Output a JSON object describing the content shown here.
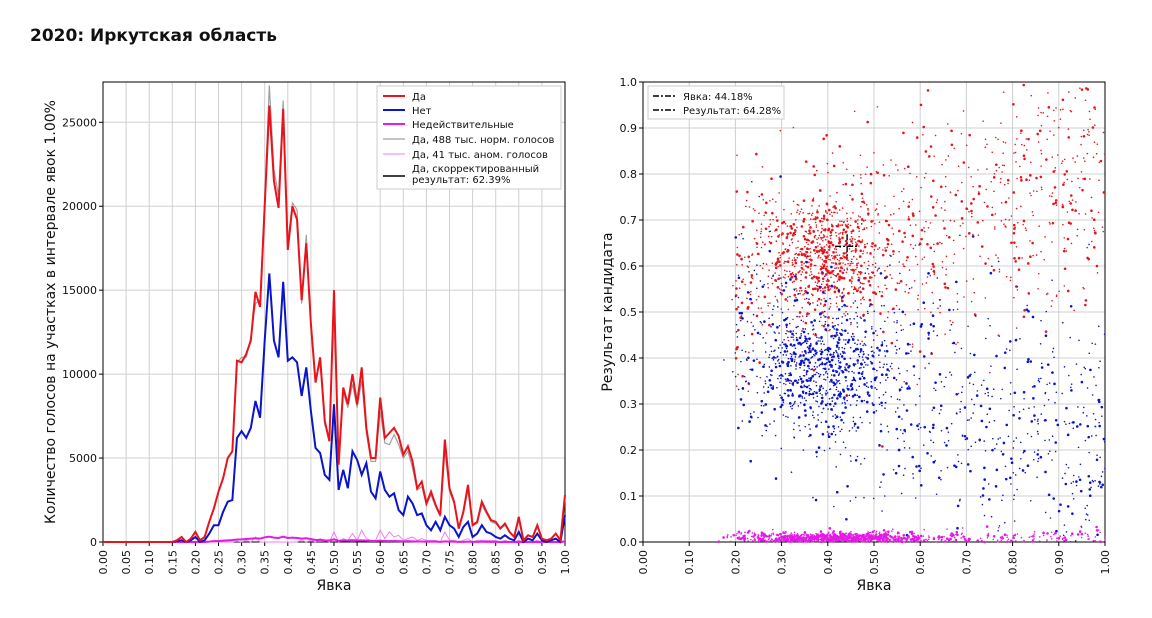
{
  "title": "2020: Иркутская область",
  "chart_data": [
    {
      "type": "line",
      "xlabel": "Явка",
      "ylabel": "Количество голосов на участках в интервале явок 1.00%",
      "xlim": [
        0,
        1
      ],
      "ylim": [
        0,
        27400
      ],
      "xticks": [
        "0.00",
        "0.05",
        "0.10",
        "0.15",
        "0.20",
        "0.25",
        "0.30",
        "0.35",
        "0.40",
        "0.45",
        "0.50",
        "0.55",
        "0.60",
        "0.65",
        "0.70",
        "0.75",
        "0.80",
        "0.85",
        "0.90",
        "0.95",
        "1.00"
      ],
      "yticks": [
        0,
        5000,
        10000,
        15000,
        20000,
        25000
      ],
      "grid": true,
      "legend_placement": "top-right",
      "x_step": 0.01,
      "series": [
        {
          "name": "Да",
          "color": "#e8141c",
          "width": 2,
          "values": [
            0,
            0,
            0,
            0,
            0,
            0,
            0,
            0,
            0,
            0,
            0,
            0,
            0,
            0,
            0,
            0,
            100,
            300,
            0,
            200,
            600,
            100,
            300,
            1200,
            2000,
            3000,
            3800,
            5000,
            5400,
            10800,
            10700,
            11200,
            12000,
            14900,
            14000,
            20000,
            26000,
            21500,
            19900,
            25800,
            17400,
            20000,
            19200,
            14400,
            17800,
            13000,
            9500,
            11000,
            7200,
            6000,
            15000,
            4600,
            9200,
            8200,
            10000,
            8200,
            10400,
            6800,
            5000,
            5000,
            8600,
            6200,
            6500,
            6800,
            6300,
            5200,
            5700,
            4800,
            3200,
            3600,
            2300,
            3000,
            2200,
            1600,
            6100,
            3200,
            2400,
            800,
            1800,
            3400,
            1000,
            1200,
            2400,
            1800,
            1300,
            1200,
            800,
            1100,
            600,
            300,
            1500,
            100,
            400,
            300,
            1000,
            200,
            100,
            200,
            500,
            100,
            2800
          ]
        },
        {
          "name": "Нет",
          "color": "#0a14c8",
          "width": 2,
          "values": [
            0,
            0,
            0,
            0,
            0,
            0,
            0,
            0,
            0,
            0,
            0,
            0,
            0,
            0,
            0,
            0,
            50,
            100,
            0,
            100,
            300,
            0,
            100,
            500,
            1000,
            1000,
            1800,
            2400,
            2500,
            6200,
            6600,
            6200,
            6800,
            8400,
            7400,
            12000,
            16000,
            12000,
            11000,
            15500,
            10800,
            11000,
            10700,
            8700,
            10400,
            7800,
            5600,
            5300,
            4000,
            3700,
            8200,
            3100,
            4300,
            3200,
            5400,
            4900,
            4000,
            4700,
            3000,
            2600,
            4200,
            3100,
            2700,
            2900,
            1900,
            1600,
            2700,
            2300,
            1600,
            1700,
            1000,
            700,
            1200,
            700,
            1500,
            1000,
            800,
            300,
            900,
            1200,
            300,
            500,
            1000,
            600,
            500,
            300,
            200,
            400,
            200,
            100,
            600,
            0,
            200,
            100,
            500,
            100,
            0,
            100,
            200,
            0,
            1600
          ]
        },
        {
          "name": "Недействительные",
          "color": "#e619e6",
          "width": 2,
          "values": [
            0,
            0,
            0,
            0,
            0,
            0,
            0,
            0,
            0,
            0,
            0,
            0,
            0,
            0,
            0,
            0,
            0,
            0,
            0,
            0,
            0,
            0,
            0,
            20,
            50,
            60,
            80,
            100,
            110,
            150,
            160,
            180,
            200,
            220,
            200,
            280,
            320,
            260,
            240,
            320,
            240,
            260,
            240,
            200,
            220,
            180,
            120,
            130,
            100,
            90,
            160,
            70,
            100,
            90,
            110,
            90,
            100,
            80,
            60,
            60,
            80,
            60,
            60,
            60,
            50,
            40,
            50,
            40,
            30,
            30,
            20,
            20,
            20,
            10,
            40,
            20,
            20,
            10,
            10,
            20,
            10,
            10,
            20,
            10,
            10,
            10,
            0,
            10,
            0,
            0,
            10,
            0,
            0,
            0,
            10,
            0,
            0,
            0,
            0,
            0,
            30
          ]
        },
        {
          "name": "Да, 488 тыс. норм. голосов",
          "color": "#a0a0a0",
          "width": 1.2,
          "values": [
            0,
            0,
            0,
            0,
            0,
            0,
            0,
            0,
            0,
            0,
            0,
            0,
            0,
            0,
            0,
            0,
            100,
            300,
            0,
            200,
            600,
            100,
            300,
            1200,
            2000,
            3000,
            3800,
            5000,
            5400,
            10700,
            11000,
            11000,
            12200,
            14200,
            14400,
            20500,
            27200,
            22200,
            20600,
            26300,
            17800,
            20200,
            19800,
            14200,
            18300,
            12800,
            9800,
            10600,
            7000,
            6200,
            14200,
            4900,
            8900,
            8000,
            9400,
            8000,
            9600,
            6500,
            4800,
            4800,
            7800,
            5900,
            5800,
            6400,
            5800,
            5000,
            5400,
            4400,
            3100,
            3300,
            2200,
            2800,
            2100,
            1500,
            5400,
            3000,
            2300,
            800,
            1700,
            3100,
            1000,
            1100,
            2200,
            1700,
            1200,
            1100,
            800,
            1000,
            600,
            300,
            1300,
            100,
            400,
            300,
            900,
            200,
            100,
            200,
            500,
            100,
            2700
          ]
        },
        {
          "name": "Да, 41 тыс. аном. голосов",
          "color": "#f080f0",
          "width": 1,
          "values": [
            0,
            0,
            0,
            0,
            0,
            0,
            0,
            0,
            0,
            0,
            0,
            0,
            0,
            0,
            0,
            0,
            0,
            0,
            0,
            0,
            0,
            0,
            0,
            0,
            0,
            0,
            0,
            0,
            0,
            50,
            0,
            100,
            0,
            300,
            0,
            0,
            0,
            0,
            0,
            0,
            0,
            0,
            0,
            100,
            0,
            100,
            0,
            200,
            100,
            0,
            600,
            0,
            200,
            100,
            500,
            100,
            700,
            200,
            100,
            100,
            700,
            200,
            600,
            300,
            400,
            100,
            200,
            300,
            100,
            200,
            100,
            100,
            100,
            0,
            600,
            100,
            100,
            0,
            100,
            200,
            0,
            100,
            100,
            100,
            100,
            100,
            0,
            100,
            0,
            0,
            100,
            0,
            0,
            0,
            100,
            0,
            0,
            0,
            0,
            0,
            100
          ]
        },
        {
          "name": "Да, скорректированный результат: 62.39%",
          "color": "#000000",
          "width": 1.5,
          "values": []
        }
      ]
    },
    {
      "type": "scatter",
      "xlabel": "Явка",
      "ylabel": "Результат кандидата",
      "xlim": [
        0,
        1
      ],
      "ylim": [
        0,
        1
      ],
      "xticks": [
        "0.00",
        "0.10",
        "0.20",
        "0.30",
        "0.40",
        "0.50",
        "0.60",
        "0.70",
        "0.80",
        "0.90",
        "1.00"
      ],
      "yticks": [
        "0.0",
        "0.1",
        "0.2",
        "0.3",
        "0.4",
        "0.5",
        "0.6",
        "0.7",
        "0.8",
        "0.9",
        "1.0"
      ],
      "grid": true,
      "legend_placement": "top-left",
      "series": [
        {
          "name": "Да",
          "color": "#e8141c"
        },
        {
          "name": "Нет",
          "color": "#0a14c8"
        },
        {
          "name": "Недействительные",
          "color": "#e619e6"
        }
      ],
      "marker": {
        "x": 0.4418,
        "y": 0.6428
      },
      "legend": [
        "Явка: 44.18%",
        "Результат: 64.28%"
      ]
    }
  ]
}
